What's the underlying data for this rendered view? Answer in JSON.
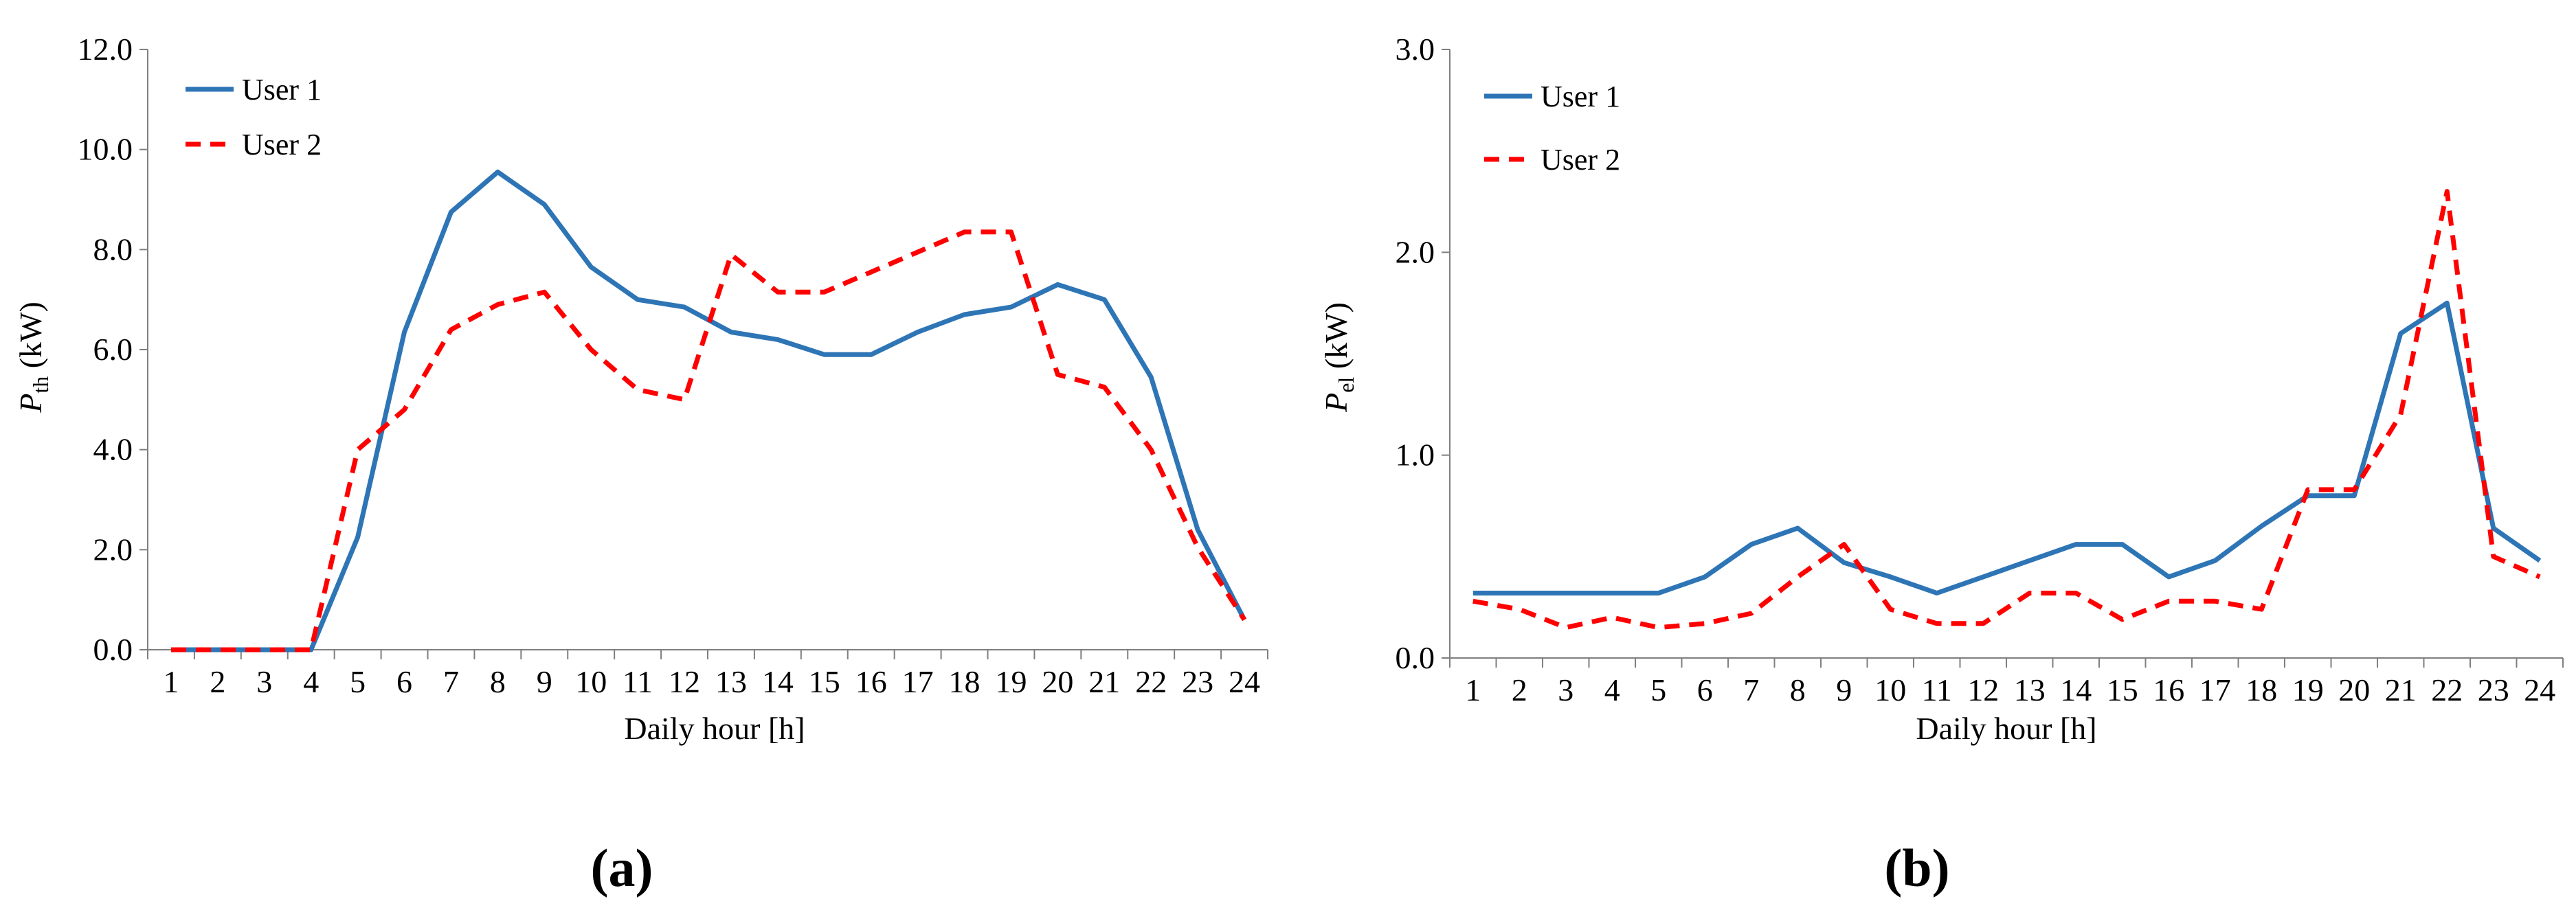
{
  "colors": {
    "user1": "#2E75B6",
    "user2": "#FF0000",
    "axis": "#7F7F7F"
  },
  "panel_labels": {
    "a": "(a)",
    "b": "(b)"
  },
  "axis_text": {
    "a": {
      "ylabel_main": "P",
      "ylabel_sub": "th",
      "ylabel_unit": " (kW)"
    },
    "b": {
      "ylabel_main": "P",
      "ylabel_sub": "el",
      "ylabel_unit": " (kW)"
    }
  },
  "chart_data": [
    {
      "type": "line",
      "panel": "(a)",
      "title": "",
      "xlabel": "Daily hour [h]",
      "ylabel": "Pth (kW)",
      "categories": [
        "1",
        "2",
        "3",
        "4",
        "5",
        "6",
        "7",
        "8",
        "9",
        "10",
        "11",
        "12",
        "13",
        "14",
        "15",
        "16",
        "17",
        "18",
        "19",
        "20",
        "21",
        "22",
        "23",
        "24"
      ],
      "ylim": [
        0,
        12
      ],
      "yticks": [
        "0.0",
        "2.0",
        "4.0",
        "6.0",
        "8.0",
        "10.0",
        "12.0"
      ],
      "legend_position": "top-left",
      "series": [
        {
          "name": "User 1",
          "style": "solid",
          "values": [
            0,
            0,
            0,
            0,
            2.25,
            6.35,
            8.75,
            9.55,
            8.9,
            7.65,
            7.0,
            6.85,
            6.35,
            6.2,
            5.9,
            5.9,
            6.35,
            6.7,
            6.85,
            7.3,
            7.0,
            5.45,
            2.4,
            0.6
          ]
        },
        {
          "name": "User 2",
          "style": "dashed",
          "values": [
            0,
            0,
            0,
            0,
            4.0,
            4.8,
            6.4,
            6.9,
            7.15,
            6.0,
            5.2,
            5.0,
            7.9,
            7.15,
            7.15,
            7.55,
            7.95,
            8.35,
            8.35,
            5.5,
            5.25,
            4.0,
            2.05,
            0.6
          ]
        }
      ]
    },
    {
      "type": "line",
      "panel": "(b)",
      "title": "",
      "xlabel": "Daily hour [h]",
      "ylabel": "Pel (kW)",
      "categories": [
        "1",
        "2",
        "3",
        "4",
        "5",
        "6",
        "7",
        "8",
        "9",
        "10",
        "11",
        "12",
        "13",
        "14",
        "15",
        "16",
        "17",
        "18",
        "19",
        "20",
        "21",
        "22",
        "23",
        "24"
      ],
      "ylim": [
        0,
        3
      ],
      "yticks": [
        "0.0",
        "1.0",
        "2.0",
        "3.0"
      ],
      "legend_position": "top-left",
      "series": [
        {
          "name": "User 1",
          "style": "solid",
          "values": [
            0.32,
            0.32,
            0.32,
            0.32,
            0.32,
            0.4,
            0.56,
            0.64,
            0.47,
            0.4,
            0.32,
            0.4,
            0.48,
            0.56,
            0.56,
            0.4,
            0.48,
            0.65,
            0.8,
            0.8,
            1.6,
            1.75,
            0.64,
            0.48
          ]
        },
        {
          "name": "User 2",
          "style": "dashed",
          "values": [
            0.28,
            0.24,
            0.15,
            0.2,
            0.15,
            0.17,
            0.22,
            0.4,
            0.56,
            0.24,
            0.17,
            0.17,
            0.32,
            0.32,
            0.19,
            0.28,
            0.28,
            0.24,
            0.83,
            0.83,
            1.2,
            2.3,
            0.5,
            0.4
          ]
        }
      ]
    }
  ]
}
